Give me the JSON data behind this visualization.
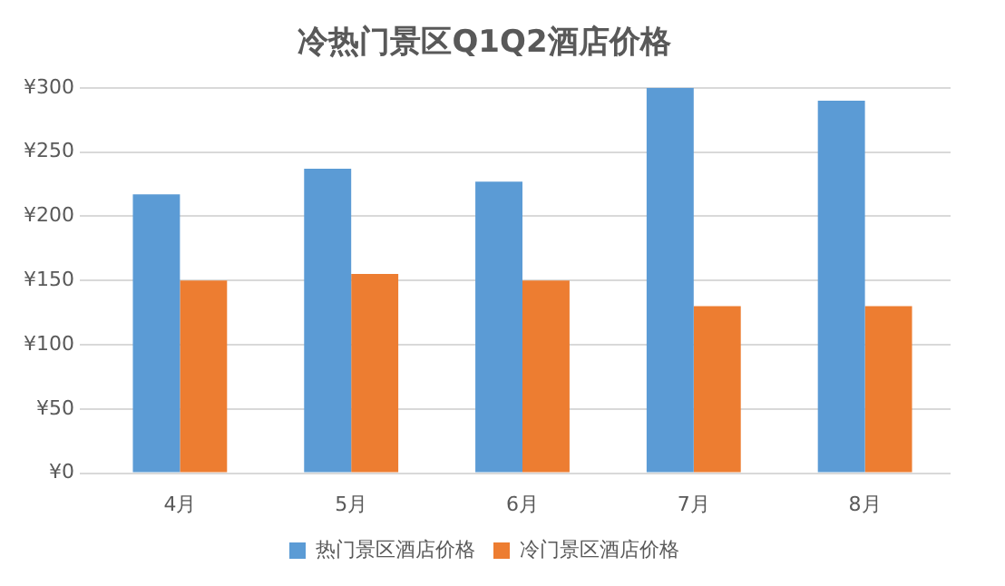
{
  "chart_data": {
    "type": "bar",
    "title": "冷热门景区Q1Q2酒店价格",
    "categories": [
      "4月",
      "5月",
      "6月",
      "7月",
      "8月"
    ],
    "series": [
      {
        "name": "热门景区酒店价格",
        "color": "#5b9bd5",
        "values": [
          217,
          237,
          227,
          300,
          290
        ]
      },
      {
        "name": "冷门景区酒店价格",
        "color": "#ed7d31",
        "values": [
          150,
          155,
          150,
          130,
          130
        ]
      }
    ],
    "ylim": [
      0,
      300
    ],
    "yticks": [
      {
        "value": 0,
        "label": "¥0"
      },
      {
        "value": 50,
        "label": "¥50"
      },
      {
        "value": 100,
        "label": "¥100"
      },
      {
        "value": 150,
        "label": "¥150"
      },
      {
        "value": 200,
        "label": "¥200"
      },
      {
        "value": 250,
        "label": "¥250"
      },
      {
        "value": 300,
        "label": "¥300"
      }
    ],
    "grid": "y",
    "legend": "bottom"
  }
}
